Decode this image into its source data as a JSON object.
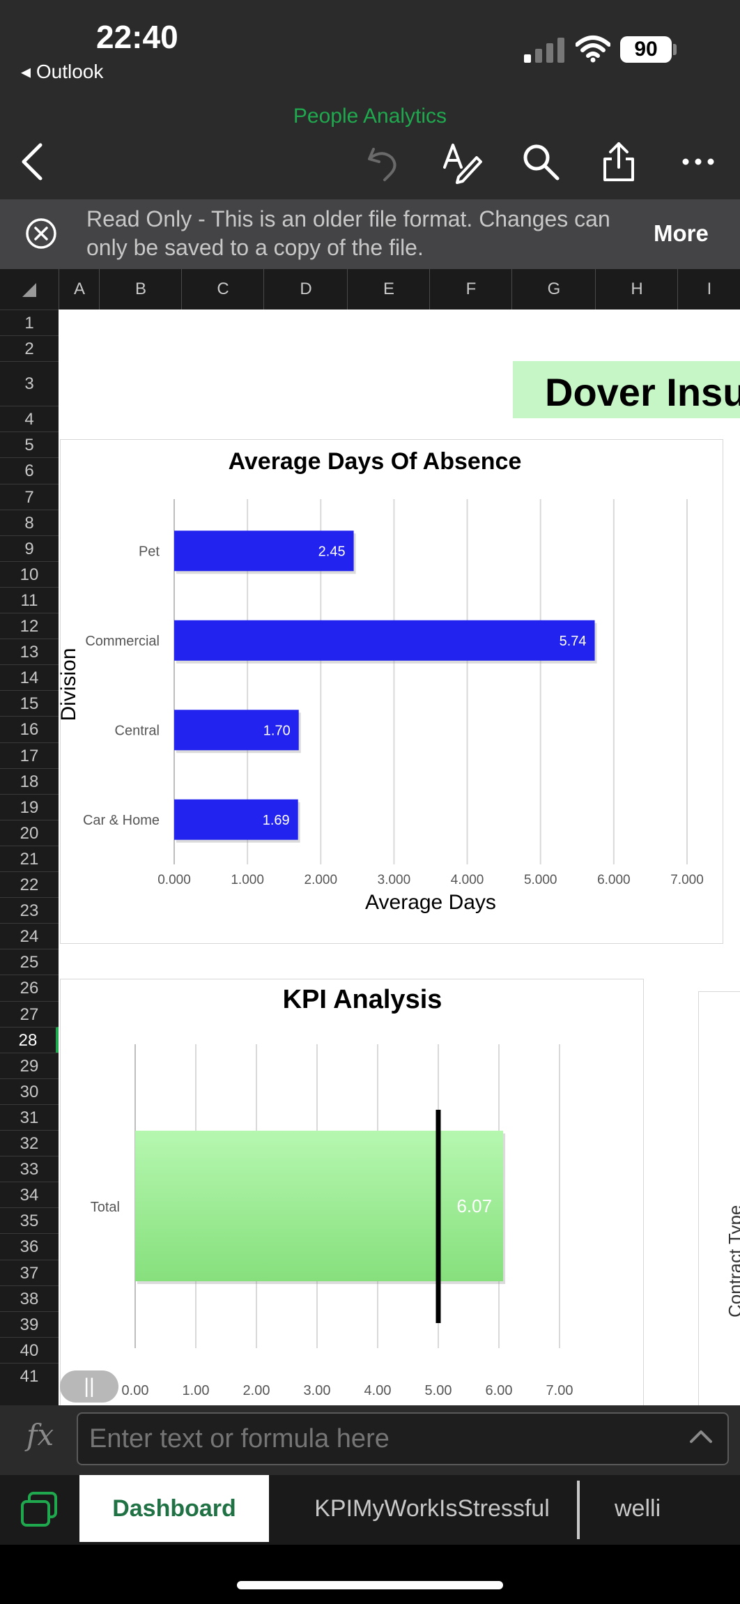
{
  "status": {
    "time": "22:40",
    "back_app": "Outlook",
    "battery": "90"
  },
  "doc_title": "People Analytics",
  "banner": {
    "text": "Read Only - This is an older file format. Changes can only be saved to a copy of the file.",
    "more": "More"
  },
  "columns": [
    "A",
    "B",
    "C",
    "D",
    "E",
    "F",
    "G",
    "H",
    "I"
  ],
  "rows": [
    "1",
    "2",
    "3",
    "4",
    "5",
    "6",
    "7",
    "8",
    "9",
    "10",
    "11",
    "12",
    "13",
    "14",
    "15",
    "16",
    "17",
    "18",
    "19",
    "20",
    "21",
    "22",
    "23",
    "24",
    "25",
    "26",
    "27",
    "28",
    "29",
    "30",
    "31",
    "32",
    "33",
    "34",
    "35",
    "36",
    "37",
    "38",
    "39",
    "40",
    "41"
  ],
  "selected_row": "28",
  "sheet_title": "Dover Insu",
  "contract_label": "Contract Type",
  "chart_data": [
    {
      "type": "bar",
      "orientation": "horizontal",
      "title": "Average Days Of Absence",
      "xlabel": "Average Days",
      "ylabel": "Division",
      "categories": [
        "Pet",
        "Commercial",
        "Central",
        "Car & Home"
      ],
      "values": [
        2.45,
        5.74,
        1.7,
        1.69
      ],
      "data_labels": [
        "2.45",
        "5.74",
        "1.70",
        "1.69"
      ],
      "xlim": [
        0,
        7
      ],
      "x_ticks": [
        "0.000",
        "1.000",
        "2.000",
        "3.000",
        "4.000",
        "5.000",
        "6.000",
        "7.000"
      ],
      "bar_color": "#2323f0",
      "grid": true
    },
    {
      "type": "bar",
      "orientation": "horizontal",
      "title": "KPI Analysis",
      "categories": [
        "Total"
      ],
      "values": [
        6.07
      ],
      "data_labels": [
        "6.07"
      ],
      "target": 5.0,
      "xlim": [
        0,
        7
      ],
      "x_ticks": [
        "0.00",
        "1.00",
        "2.00",
        "3.00",
        "4.00",
        "5.00",
        "6.00",
        "7.00"
      ],
      "bar_color": "#9ef09e",
      "target_color": "#000000",
      "grid": true
    }
  ],
  "formula_placeholder": "Enter text or formula here",
  "tabs": {
    "dashboard": "Dashboard",
    "kpi": "KPIMyWorkIsStressful",
    "well": "welli"
  }
}
